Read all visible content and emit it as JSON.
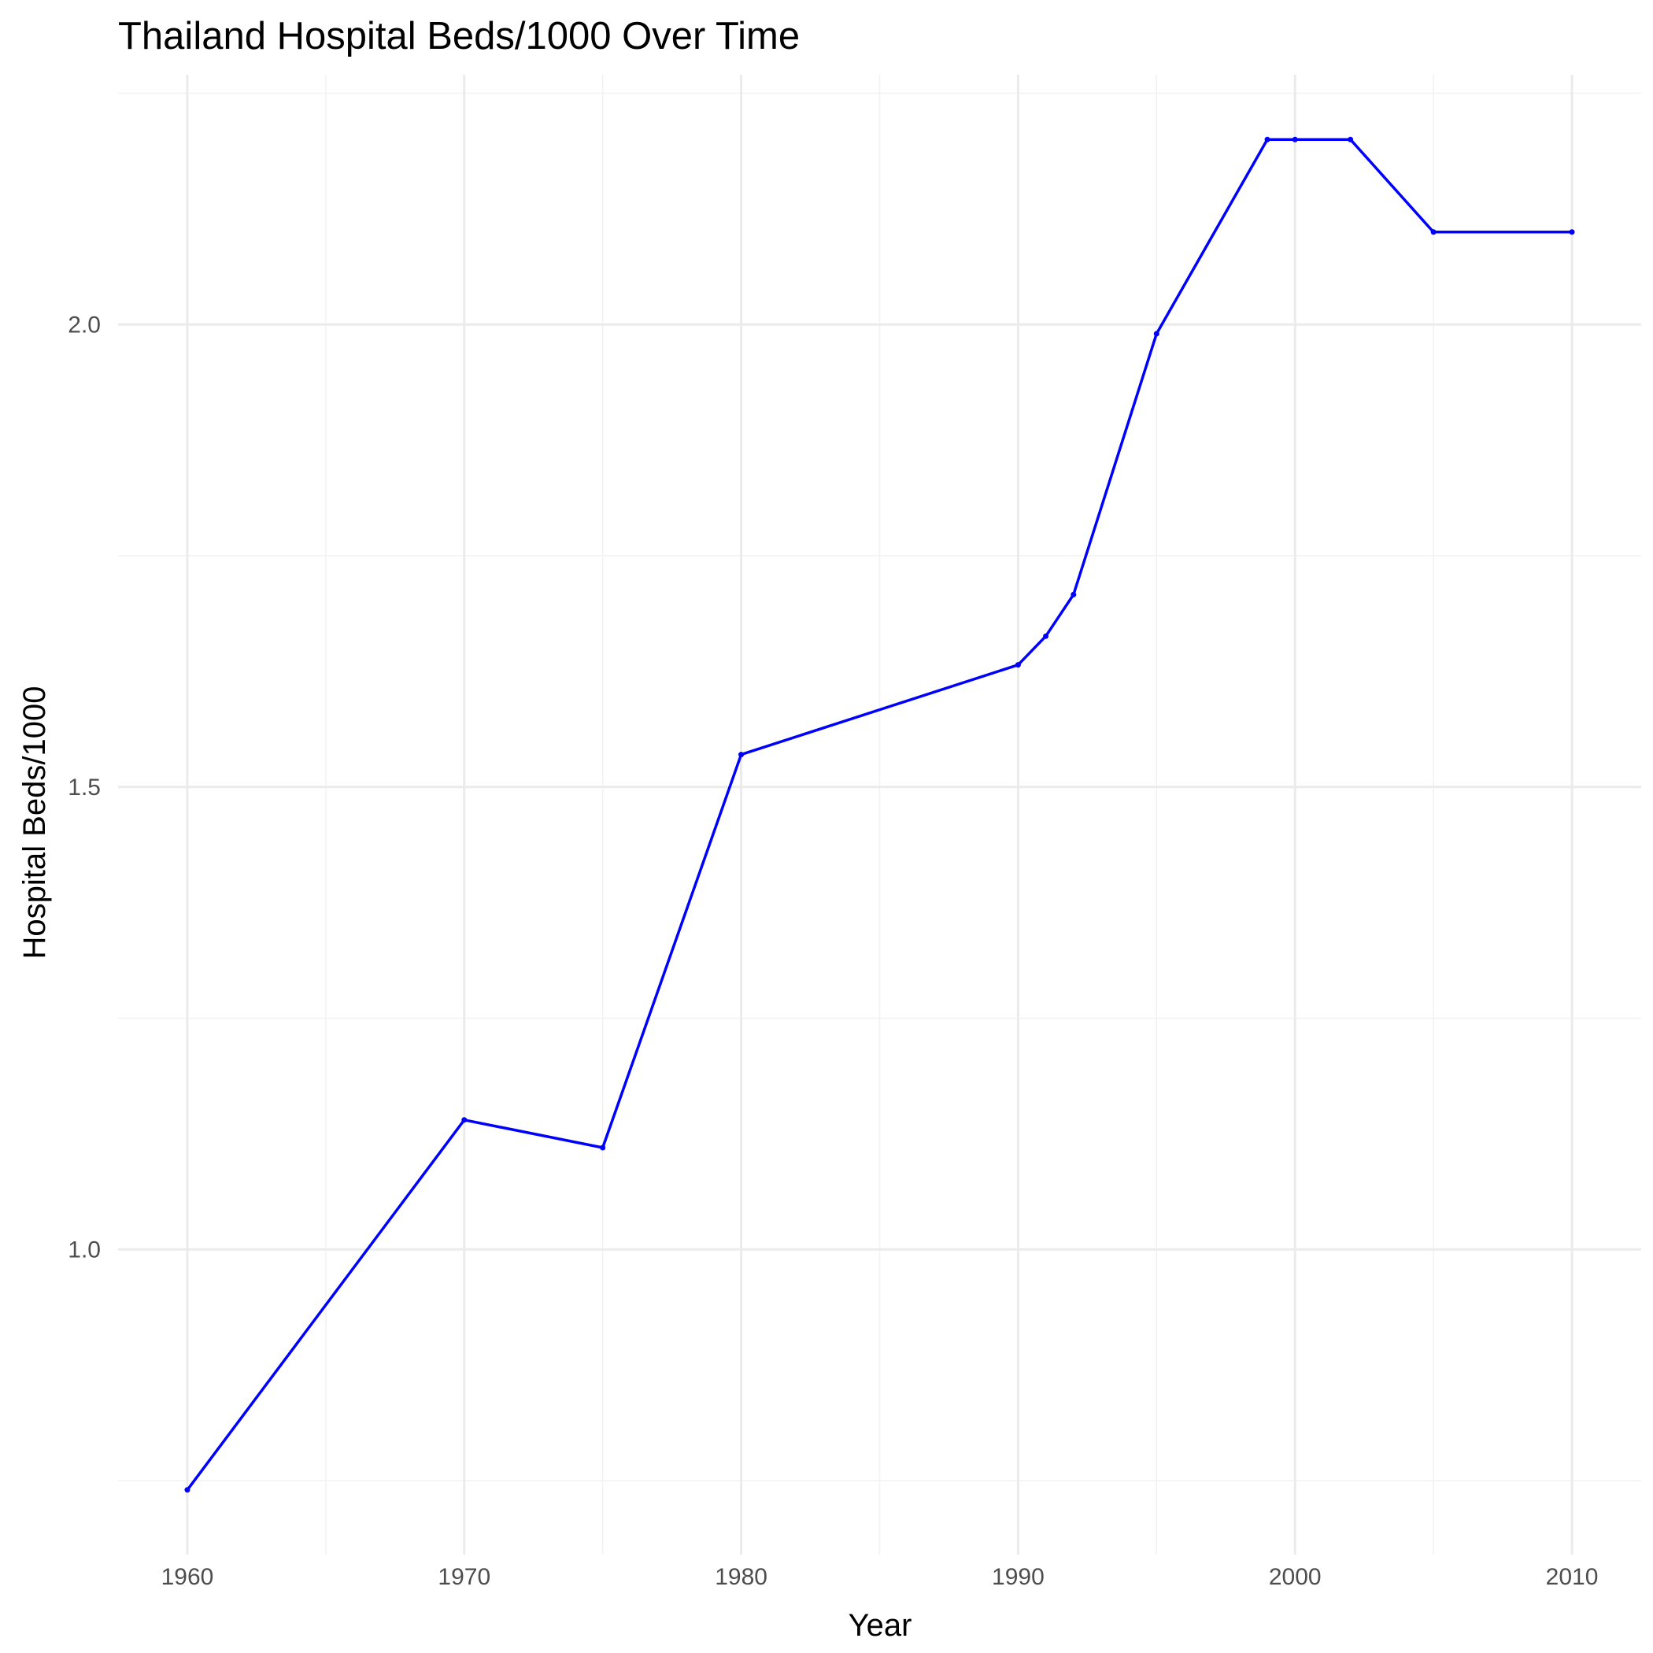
{
  "chart_data": {
    "type": "line",
    "title": "Thailand Hospital Beds/1000 Over Time",
    "xlabel": "Year",
    "ylabel": "Hospital Beds/1000",
    "xlim": [
      1957.5,
      2012.5
    ],
    "ylim": [
      0.67,
      2.27
    ],
    "x_ticks": [
      1960,
      1970,
      1980,
      1990,
      2000,
      2010
    ],
    "x_tick_labels": [
      "1960",
      "1970",
      "1980",
      "1990",
      "2000",
      "2010"
    ],
    "x_minor_ticks": [
      1965,
      1975,
      1985,
      1995,
      2005
    ],
    "y_ticks": [
      1.0,
      1.5,
      2.0
    ],
    "y_tick_labels": [
      "1.0",
      "1.5",
      "2.0"
    ],
    "y_minor_ticks": [
      0.75,
      1.25,
      1.75,
      2.25
    ],
    "grid": true,
    "series": [
      {
        "color": "#0000ff",
        "x": [
          1960,
          1970,
          1975,
          1980,
          1990,
          1991,
          1992,
          1995,
          1999,
          2000,
          2002,
          2005,
          2010
        ],
        "y": [
          0.74,
          1.14,
          1.11,
          1.535,
          1.632,
          1.663,
          1.708,
          1.99,
          2.2,
          2.2,
          2.2,
          2.1,
          2.1
        ]
      }
    ]
  }
}
